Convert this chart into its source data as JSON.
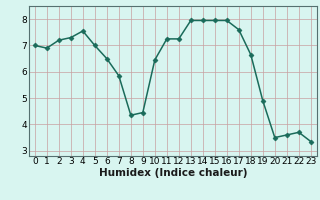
{
  "x": [
    0,
    1,
    2,
    3,
    4,
    5,
    6,
    7,
    8,
    9,
    10,
    11,
    12,
    13,
    14,
    15,
    16,
    17,
    18,
    19,
    20,
    21,
    22,
    23
  ],
  "y": [
    7.0,
    6.9,
    7.2,
    7.3,
    7.55,
    7.0,
    6.5,
    5.85,
    4.35,
    4.45,
    6.45,
    7.25,
    7.25,
    7.95,
    7.95,
    7.95,
    7.95,
    7.6,
    6.65,
    4.9,
    3.5,
    3.6,
    3.7,
    3.35
  ],
  "line_color": "#1a6b5a",
  "marker": "D",
  "marker_size": 2.5,
  "xlabel": "Humidex (Indice chaleur)",
  "xlim": [
    -0.5,
    23.5
  ],
  "ylim": [
    2.8,
    8.5
  ],
  "yticks": [
    3,
    4,
    5,
    6,
    7,
    8
  ],
  "xticks": [
    0,
    1,
    2,
    3,
    4,
    5,
    6,
    7,
    8,
    9,
    10,
    11,
    12,
    13,
    14,
    15,
    16,
    17,
    18,
    19,
    20,
    21,
    22,
    23
  ],
  "background_color": "#d8f5f0",
  "grid_color_major": "#c8a0a0",
  "grid_color_minor": "#c8a0a0",
  "tick_label_fontsize": 6.5,
  "xlabel_fontsize": 7.5,
  "line_width": 1.1,
  "spine_color": "#557070"
}
